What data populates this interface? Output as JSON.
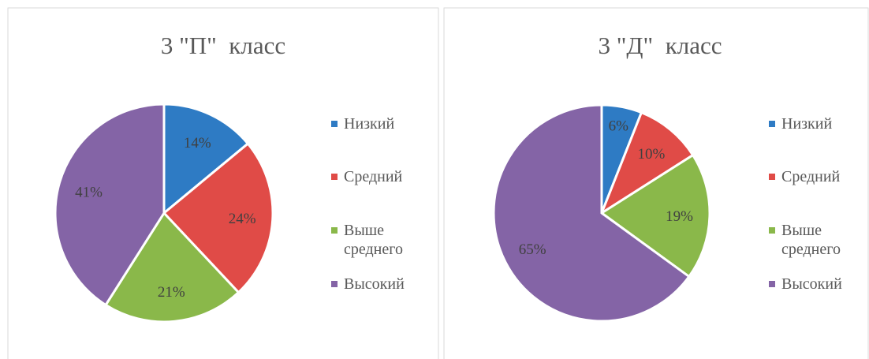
{
  "chart_data": [
    {
      "type": "pie",
      "title": "3 \"П\"  класс",
      "categories": [
        "Низкий",
        "Средний",
        "Выше среднего",
        "Высокий"
      ],
      "values": [
        14,
        24,
        21,
        41
      ],
      "value_labels": [
        "14%",
        "24%",
        "21%",
        "41%"
      ],
      "colors": [
        "#2e7bc4",
        "#e04b47",
        "#8ab84a",
        "#8464a6"
      ]
    },
    {
      "type": "pie",
      "title": "3 \"Д\"  класс",
      "categories": [
        "Низкий",
        "Средний",
        "Выше среднего",
        "Высокий"
      ],
      "values": [
        6,
        10,
        19,
        65
      ],
      "value_labels": [
        "6%",
        "10%",
        "19%",
        "65%"
      ],
      "colors": [
        "#2e7bc4",
        "#e04b47",
        "#8ab84a",
        "#8464a6"
      ]
    }
  ]
}
